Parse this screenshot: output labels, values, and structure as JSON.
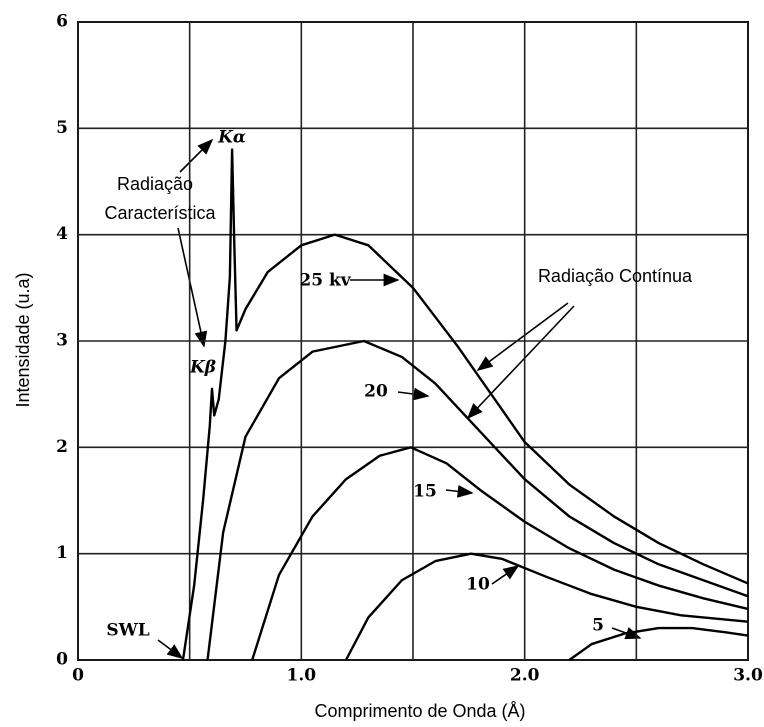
{
  "chart_data": {
    "type": "line",
    "xlabel": "Comprimento de Onda (Å)",
    "ylabel": "Intensidade (u.a)",
    "xlim": [
      0,
      3
    ],
    "ylim": [
      0,
      6
    ],
    "xticks": [
      0,
      {
        "value": 1,
        "label": "1.0"
      },
      {
        "value": 2,
        "label": "2.0"
      },
      {
        "value": 3,
        "label": "3.0"
      }
    ],
    "x_minor_gridlines": [
      0.5,
      1.5,
      2.5
    ],
    "yticks": [
      0,
      1,
      2,
      3,
      4,
      5,
      6
    ],
    "grid": true,
    "color": "#000000",
    "series": [
      {
        "name": "25 kv",
        "x": [
          0.47,
          0.52,
          0.56,
          0.59,
          0.6,
          0.61,
          0.63,
          0.66,
          0.68,
          0.69,
          0.7,
          0.71,
          0.75,
          0.85,
          1.0,
          1.15,
          1.3,
          1.5,
          1.7,
          1.9,
          2.0,
          2.2,
          2.4,
          2.6,
          2.8,
          3.0
        ],
        "values": [
          0,
          0.7,
          1.5,
          2.2,
          2.55,
          2.3,
          2.45,
          3.0,
          3.6,
          4.8,
          3.9,
          3.1,
          3.3,
          3.65,
          3.9,
          4.0,
          3.9,
          3.5,
          2.95,
          2.35,
          2.05,
          1.65,
          1.35,
          1.1,
          0.9,
          0.72
        ]
      },
      {
        "name": "20",
        "x": [
          0.58,
          0.65,
          0.75,
          0.9,
          1.05,
          1.28,
          1.45,
          1.6,
          1.8,
          2.0,
          2.2,
          2.4,
          2.6,
          2.8,
          3.0
        ],
        "values": [
          0,
          1.2,
          2.1,
          2.65,
          2.9,
          3.0,
          2.85,
          2.6,
          2.15,
          1.7,
          1.35,
          1.1,
          0.9,
          0.75,
          0.6
        ]
      },
      {
        "name": "15",
        "x": [
          0.78,
          0.9,
          1.05,
          1.2,
          1.35,
          1.49,
          1.65,
          1.8,
          2.0,
          2.2,
          2.4,
          2.6,
          2.8,
          3.0
        ],
        "values": [
          0,
          0.8,
          1.35,
          1.7,
          1.92,
          2.0,
          1.85,
          1.6,
          1.3,
          1.05,
          0.85,
          0.7,
          0.58,
          0.48
        ]
      },
      {
        "name": "10",
        "x": [
          1.2,
          1.3,
          1.45,
          1.6,
          1.76,
          1.9,
          2.1,
          2.3,
          2.5,
          2.7,
          3.0
        ],
        "values": [
          0,
          0.4,
          0.75,
          0.93,
          1.0,
          0.95,
          0.78,
          0.62,
          0.5,
          0.42,
          0.36
        ]
      },
      {
        "name": "5",
        "x": [
          2.2,
          2.3,
          2.45,
          2.6,
          2.75,
          2.9,
          3.0
        ],
        "values": [
          0,
          0.15,
          0.25,
          0.3,
          0.3,
          0.26,
          0.23
        ]
      }
    ],
    "annotations": [
      "Kα",
      "Radiação",
      "Característica",
      "Kβ",
      "SWL",
      "Radiação Contínua"
    ]
  }
}
